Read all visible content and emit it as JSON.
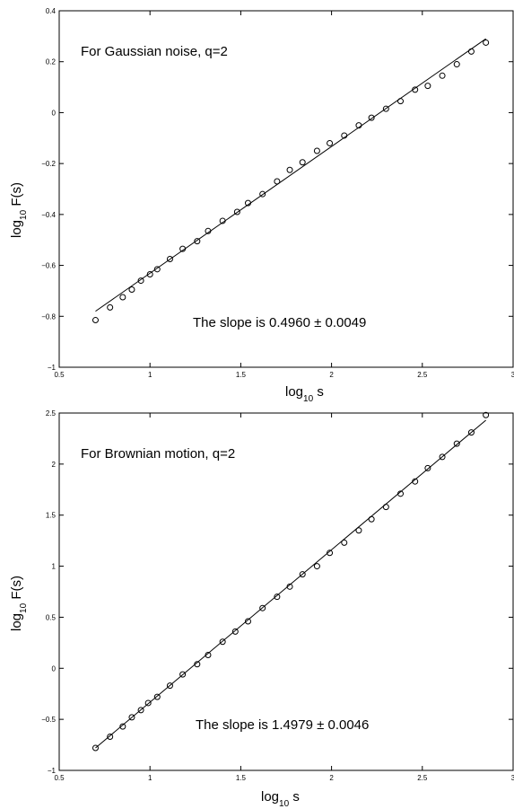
{
  "chart_data": [
    {
      "type": "scatter",
      "annotation": "For Gaussian noise, q=2",
      "slope_text": "The slope is 0.4960 ± 0.0049",
      "xlabel": {
        "base": "log",
        "sub": "10",
        "rest": " s"
      },
      "ylabel": {
        "base": "log",
        "sub": "10",
        "rest": " F(s)"
      },
      "xlim": [
        0.5,
        3
      ],
      "ylim": [
        -1,
        0.4
      ],
      "xticks": [
        0.5,
        1,
        1.5,
        2,
        2.5,
        3
      ],
      "xtick_labels": [
        "0.5",
        "1",
        "1.5",
        "2",
        "2.5",
        "3"
      ],
      "yticks": [
        -1,
        -0.8,
        -0.6,
        -0.4,
        -0.2,
        0,
        0.2,
        0.4
      ],
      "ytick_labels": [
        "−1",
        "−0.8",
        "−0.6",
        "−0.4",
        "−0.2",
        "0",
        "0.2",
        "0.4"
      ],
      "grid": false,
      "marker": "circle",
      "series": [
        {
          "x": [
            0.7,
            0.78,
            0.85,
            0.9,
            0.95,
            1.0,
            1.04,
            1.11,
            1.18,
            1.26,
            1.32,
            1.4,
            1.48,
            1.54,
            1.62,
            1.7,
            1.77,
            1.84,
            1.92,
            1.99,
            2.07,
            2.15,
            2.22,
            2.3,
            2.38,
            2.46,
            2.53,
            2.61,
            2.69,
            2.77,
            2.85
          ],
          "y": [
            -0.815,
            -0.765,
            -0.725,
            -0.695,
            -0.66,
            -0.635,
            -0.615,
            -0.575,
            -0.535,
            -0.505,
            -0.465,
            -0.425,
            -0.39,
            -0.355,
            -0.32,
            -0.27,
            -0.225,
            -0.195,
            -0.15,
            -0.12,
            -0.09,
            -0.05,
            -0.02,
            0.015,
            0.045,
            0.09,
            0.105,
            0.145,
            0.19,
            0.24,
            0.275
          ]
        }
      ],
      "fit_line": {
        "x": [
          0.7,
          2.85
        ],
        "y": [
          -0.78,
          0.29
        ]
      }
    },
    {
      "type": "scatter",
      "annotation": "For Brownian motion, q=2",
      "slope_text": "The slope is 1.4979 ± 0.0046",
      "xlabel": {
        "base": "log",
        "sub": "10",
        "rest": " s"
      },
      "ylabel": {
        "base": "log",
        "sub": "10",
        "rest": " F(s)"
      },
      "xlim": [
        0.5,
        3
      ],
      "ylim": [
        -1,
        2.5
      ],
      "xticks": [
        0.5,
        1,
        1.5,
        2,
        2.5,
        3
      ],
      "xtick_labels": [
        "0.5",
        "1",
        "1.5",
        "2",
        "2.5",
        "3"
      ],
      "yticks": [
        -1,
        -0.5,
        0,
        0.5,
        1,
        1.5,
        2,
        2.5
      ],
      "ytick_labels": [
        "−1",
        "−0.5",
        "0",
        "0.5",
        "1",
        "1.5",
        "2",
        "2.5"
      ],
      "grid": false,
      "marker": "circle",
      "series": [
        {
          "x": [
            0.7,
            0.78,
            0.85,
            0.9,
            0.95,
            0.99,
            1.04,
            1.11,
            1.18,
            1.26,
            1.32,
            1.4,
            1.47,
            1.54,
            1.62,
            1.7,
            1.77,
            1.84,
            1.92,
            1.99,
            2.07,
            2.15,
            2.22,
            2.3,
            2.38,
            2.46,
            2.53,
            2.61,
            2.69,
            2.77,
            2.85
          ],
          "y": [
            -0.78,
            -0.67,
            -0.57,
            -0.48,
            -0.41,
            -0.34,
            -0.28,
            -0.17,
            -0.06,
            0.04,
            0.13,
            0.26,
            0.36,
            0.46,
            0.59,
            0.7,
            0.8,
            0.92,
            1.0,
            1.13,
            1.23,
            1.35,
            1.46,
            1.58,
            1.71,
            1.83,
            1.96,
            2.07,
            2.2,
            2.31,
            2.48
          ]
        }
      ],
      "fit_line": {
        "x": [
          0.7,
          2.85
        ],
        "y": [
          -0.78,
          2.43
        ]
      }
    }
  ]
}
